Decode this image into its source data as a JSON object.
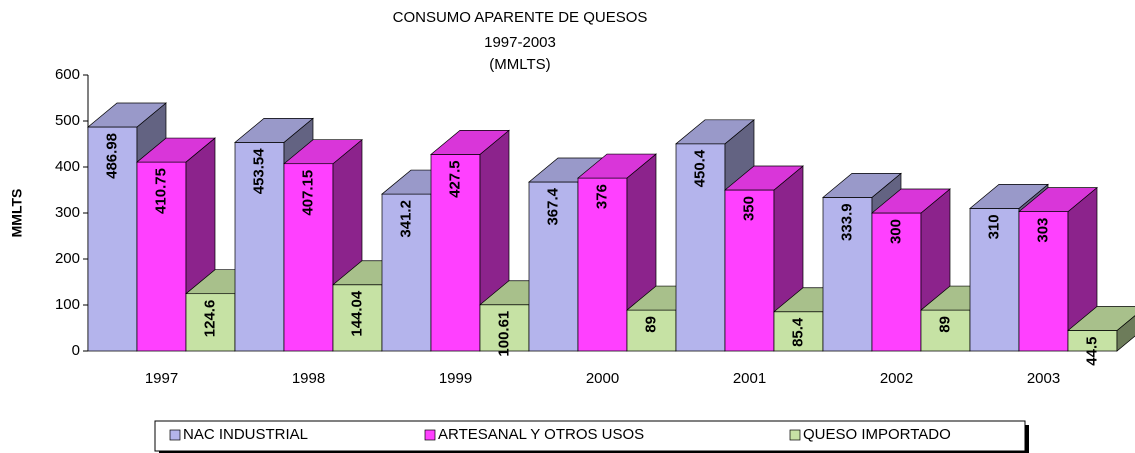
{
  "chart_data": {
    "type": "bar3d",
    "title": "CONSUMO APARENTE DE QUESOS",
    "subtitle": [
      "1997-2003",
      "(MMLTS)"
    ],
    "y_label": "MMLTS",
    "categories": [
      "1997",
      "1998",
      "1999",
      "2000",
      "2001",
      "2002",
      "2003"
    ],
    "series": [
      {
        "name": "NAC INDUSTRIAL",
        "color": "#b4b4ec",
        "values": [
          486.98,
          453.54,
          341.2,
          367.4,
          450.4,
          333.9,
          310
        ]
      },
      {
        "name": "ARTESANAL Y  OTROS USOS",
        "color": "#ff40ff",
        "values": [
          410.75,
          407.15,
          427.5,
          376,
          350,
          300,
          303
        ]
      },
      {
        "name": "QUESO IMPORTADO",
        "color": "#c6e2a4",
        "values": [
          124.6,
          144.04,
          100.61,
          89,
          85.4,
          89,
          44.5
        ]
      }
    ],
    "ylim": [
      0,
      600
    ],
    "yticks": [
      0,
      100,
      200,
      300,
      400,
      500,
      600
    ]
  }
}
